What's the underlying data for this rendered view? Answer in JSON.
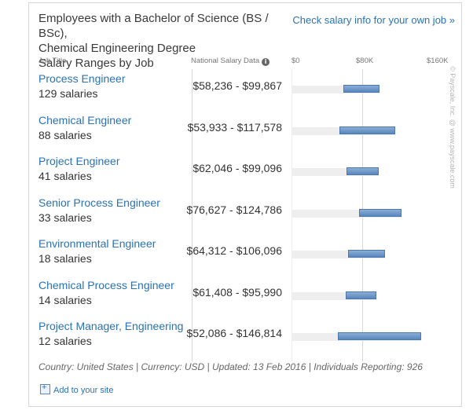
{
  "header": {
    "title_lines": [
      "Employees with a Bachelor of Science (BS / BSc),",
      "Chemical Engineering Degree",
      "Salary Ranges by Job"
    ],
    "check_link": "Check salary info for your own job »"
  },
  "columns": {
    "job_title": "Job Title",
    "national_salary": "National Salary Data",
    "info_icon": "info-icon"
  },
  "watermark": "© Payscale, Inc. @ www.payscale.com",
  "chart_data": {
    "type": "bar",
    "subtype": "range",
    "title": "Employees with a Bachelor of Science (BS / BSc), Chemical Engineering Degree Salary Ranges by Job",
    "xlim": [
      0,
      160000
    ],
    "tick_labels": [
      "$0",
      "$80K",
      "$160K"
    ],
    "tick_values": [
      0,
      80000,
      160000
    ],
    "grid": false,
    "series": [
      {
        "job": "Process Engineer",
        "count": "129 salaries",
        "range_label": "$58,236 - $99,867",
        "low": 58236,
        "high": 99867
      },
      {
        "job": "Chemical Engineer",
        "count": "88 salaries",
        "range_label": "$53,933 - $117,578",
        "low": 53933,
        "high": 117578
      },
      {
        "job": "Project Engineer",
        "count": "41 salaries",
        "range_label": "$62,046 - $99,096",
        "low": 62046,
        "high": 99096
      },
      {
        "job": "Senior Process Engineer",
        "count": "33 salaries",
        "range_label": "$76,627 - $124,786",
        "low": 76627,
        "high": 124786
      },
      {
        "job": "Environmental Engineer",
        "count": "18 salaries",
        "range_label": "$64,312 - $106,096",
        "low": 64312,
        "high": 106096
      },
      {
        "job": "Chemical Process Engineer",
        "count": "14 salaries",
        "range_label": "$61,408 - $95,990",
        "low": 61408,
        "high": 95990
      },
      {
        "job": "Project Manager, Engineering",
        "count": "12 salaries",
        "range_label": "$52,086 - $146,814",
        "low": 52086,
        "high": 146814
      }
    ]
  },
  "footer": {
    "note": "Country: United States | Currency: USD | Updated: 13 Feb 2016 | Individuals Reporting: 926",
    "add_site": "Add to your site"
  },
  "colors": {
    "link": "#2a72b5",
    "bar": "#5a86bd",
    "track": "#eeeeee"
  }
}
